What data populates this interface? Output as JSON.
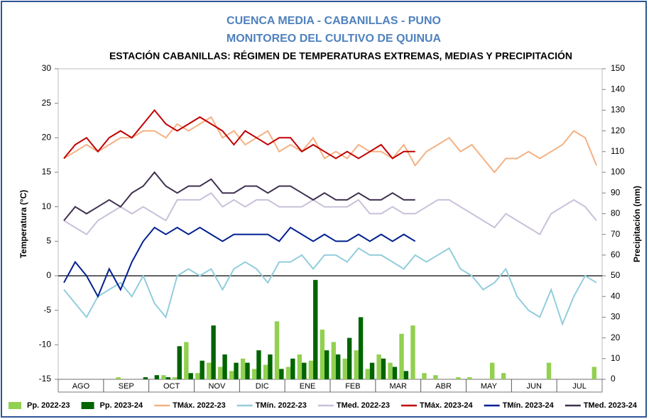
{
  "chart_data": {
    "type": "combo",
    "title": "CUENCA MEDIA - CABANILLAS - PUNO",
    "subtitle": "MONITOREO DEL CULTIVO DE QUINUA",
    "caption": "ESTACIÓN CABANILLAS: RÉGIMEN DE TEMPERATURAS EXTREMAS, MEDIAS Y PRECIPITACIÓN",
    "ylabel": "Temperatura (°C)",
    "y2label": "Precipitación (mm)",
    "categories": [
      "AGO",
      null,
      null,
      null,
      "SEP",
      null,
      null,
      null,
      "OCT",
      null,
      null,
      null,
      "NOV",
      null,
      null,
      null,
      "DIC",
      null,
      null,
      null,
      "ENE",
      null,
      null,
      null,
      "FEB",
      null,
      null,
      null,
      "MAR",
      null,
      null,
      null,
      "ABR",
      null,
      null,
      null,
      "MAY",
      null,
      null,
      null,
      "JUN",
      null,
      null,
      null,
      "JUL",
      null,
      null,
      null
    ],
    "ylim": [
      -15,
      30
    ],
    "yticks": [
      -15,
      -10,
      -5,
      0,
      5,
      10,
      15,
      20,
      25,
      30
    ],
    "y2lim": [
      0,
      150
    ],
    "y2ticks": [
      0,
      10,
      20,
      30,
      40,
      50,
      60,
      70,
      80,
      90,
      100,
      110,
      120,
      130,
      140,
      150
    ],
    "zero_line": true,
    "legend": "bottom",
    "series": [
      {
        "name": "Pp. 2022-23",
        "type": "bar",
        "axis": "y2",
        "color": "#92d050",
        "values": [
          0,
          0,
          0,
          0,
          0,
          1,
          0,
          0,
          0,
          2,
          1,
          18,
          3,
          8,
          6,
          4,
          10,
          5,
          7,
          28,
          6,
          12,
          9,
          24,
          18,
          10,
          14,
          5,
          12,
          8,
          22,
          26,
          3,
          2,
          0,
          1,
          1,
          0,
          8,
          3,
          0,
          0,
          0,
          8,
          0,
          0,
          0,
          6
        ]
      },
      {
        "name": "Pp. 2023-24",
        "type": "bar",
        "axis": "y2",
        "color": "#006400",
        "values": [
          0,
          0,
          0,
          0,
          0,
          0,
          0,
          1,
          2,
          1,
          16,
          3,
          9,
          26,
          12,
          8,
          8,
          14,
          12,
          5,
          10,
          8,
          48,
          14,
          12,
          20,
          30,
          8,
          10,
          6,
          4,
          0,
          null,
          null,
          null,
          null,
          null,
          null,
          null,
          null,
          null,
          null,
          null,
          null,
          null,
          null,
          null,
          null
        ]
      },
      {
        "name": "TMáx. 2022-23",
        "type": "line",
        "color": "#f4b183",
        "values": [
          17,
          18,
          19,
          18,
          19,
          20,
          20,
          21,
          21,
          20,
          22,
          21,
          22,
          23,
          20,
          21,
          19,
          20,
          21,
          18,
          19,
          18,
          20,
          17,
          18,
          17,
          19,
          18,
          18,
          17,
          19,
          16,
          18,
          19,
          20,
          18,
          19,
          17,
          15,
          17,
          17,
          18,
          17,
          18,
          19,
          21,
          20,
          16
        ]
      },
      {
        "name": "TMín. 2022-23",
        "type": "line",
        "color": "#92cddc",
        "values": [
          -2,
          -4,
          -6,
          -3,
          -2,
          -1,
          -3,
          0,
          -4,
          -6,
          0,
          1,
          0,
          1,
          -2,
          1,
          2,
          1,
          -1,
          2,
          2,
          3,
          1,
          3,
          3,
          2,
          4,
          3,
          3,
          2,
          1,
          3,
          2,
          3,
          4,
          1,
          0,
          -2,
          -1,
          1,
          -3,
          -5,
          -6,
          -2,
          -7,
          -3,
          0,
          -1
        ]
      },
      {
        "name": "TMed. 2022-23",
        "type": "line",
        "color": "#c9c0d9",
        "values": [
          8,
          7,
          6,
          8,
          9,
          10,
          9,
          10,
          9,
          8,
          11,
          11,
          11,
          12,
          10,
          11,
          10,
          11,
          11,
          10,
          10,
          10,
          11,
          10,
          10,
          10,
          11,
          9,
          9,
          10,
          9,
          9,
          10,
          11,
          11,
          10,
          9,
          8,
          7,
          9,
          8,
          7,
          6,
          9,
          10,
          11,
          10,
          8
        ]
      },
      {
        "name": "TMáx. 2023-24",
        "type": "line",
        "color": "#c00000",
        "values": [
          17,
          19,
          20,
          18,
          20,
          21,
          20,
          22,
          24,
          22,
          21,
          22,
          23,
          22,
          21,
          19,
          21,
          20,
          19,
          20,
          20,
          18,
          19,
          18,
          17,
          18,
          17,
          18,
          19,
          17,
          18,
          18,
          null,
          null,
          null,
          null,
          null,
          null,
          null,
          null,
          null,
          null,
          null,
          null,
          null,
          null,
          null,
          null
        ]
      },
      {
        "name": "TMín. 2023-24",
        "type": "line",
        "color": "#002090",
        "values": [
          -1,
          2,
          0,
          -3,
          1,
          -2,
          2,
          5,
          7,
          6,
          7,
          6,
          7,
          6,
          5,
          6,
          6,
          6,
          6,
          5,
          7,
          6,
          5,
          6,
          5,
          5,
          6,
          5,
          6,
          5,
          6,
          5,
          null,
          null,
          null,
          null,
          null,
          null,
          null,
          null,
          null,
          null,
          null,
          null,
          null,
          null,
          null,
          null
        ]
      },
      {
        "name": "TMed. 2023-24",
        "type": "line",
        "color": "#403151",
        "values": [
          8,
          10,
          9,
          10,
          11,
          10,
          12,
          13,
          15,
          13,
          12,
          13,
          13,
          14,
          12,
          12,
          13,
          13,
          12,
          13,
          13,
          12,
          11,
          12,
          11,
          11,
          12,
          11,
          11,
          12,
          11,
          11,
          null,
          null,
          null,
          null,
          null,
          null,
          null,
          null,
          null,
          null,
          null,
          null,
          null,
          null,
          null,
          null
        ]
      }
    ]
  }
}
